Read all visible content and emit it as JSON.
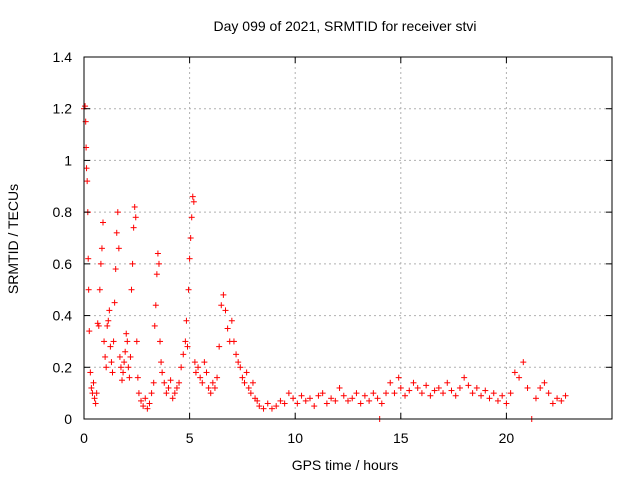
{
  "chart_data": {
    "type": "scatter",
    "title": "Day 099 of 2021, SRMTID for receiver stvi",
    "xlabel": "GPS time / hours",
    "ylabel": "SRMTID / TECUs",
    "xlim": [
      0,
      25
    ],
    "ylim": [
      0,
      1.4
    ],
    "xticks": [
      0,
      5,
      10,
      15,
      20
    ],
    "xtick_labels": [
      "0",
      "5",
      "10",
      "15",
      "20"
    ],
    "yticks": [
      0,
      0.2,
      0.4,
      0.6,
      0.8,
      1.0,
      1.2,
      1.4
    ],
    "ytick_labels": [
      "0",
      "0.2",
      "0.4",
      "0.6",
      "0.8",
      "1",
      "1.2",
      "1.4"
    ],
    "grid": true,
    "marker": "plus",
    "color": "#ff0000",
    "series": [
      {
        "name": "SRMTID",
        "points": [
          [
            0.0,
            1.2
          ],
          [
            0.05,
            1.21
          ],
          [
            0.08,
            1.15
          ],
          [
            0.1,
            1.05
          ],
          [
            0.12,
            0.97
          ],
          [
            0.15,
            0.92
          ],
          [
            0.18,
            0.8
          ],
          [
            0.2,
            0.62
          ],
          [
            0.22,
            0.5
          ],
          [
            0.25,
            0.34
          ],
          [
            0.3,
            0.18
          ],
          [
            0.35,
            0.12
          ],
          [
            0.4,
            0.1
          ],
          [
            0.45,
            0.14
          ],
          [
            0.5,
            0.08
          ],
          [
            0.55,
            0.06
          ],
          [
            0.6,
            0.1
          ],
          [
            0.65,
            0.37
          ],
          [
            0.7,
            0.36
          ],
          [
            0.75,
            0.5
          ],
          [
            0.8,
            0.6
          ],
          [
            0.85,
            0.66
          ],
          [
            0.9,
            0.76
          ],
          [
            0.95,
            0.3
          ],
          [
            1.0,
            0.24
          ],
          [
            1.05,
            0.2
          ],
          [
            1.1,
            0.36
          ],
          [
            1.15,
            0.38
          ],
          [
            1.2,
            0.42
          ],
          [
            1.25,
            0.28
          ],
          [
            1.3,
            0.22
          ],
          [
            1.35,
            0.18
          ],
          [
            1.4,
            0.3
          ],
          [
            1.45,
            0.45
          ],
          [
            1.5,
            0.58
          ],
          [
            1.55,
            0.72
          ],
          [
            1.6,
            0.8
          ],
          [
            1.65,
            0.66
          ],
          [
            1.7,
            0.24
          ],
          [
            1.75,
            0.2
          ],
          [
            1.8,
            0.15
          ],
          [
            1.85,
            0.18
          ],
          [
            1.9,
            0.22
          ],
          [
            1.95,
            0.26
          ],
          [
            2.0,
            0.33
          ],
          [
            2.05,
            0.3
          ],
          [
            2.1,
            0.2
          ],
          [
            2.15,
            0.16
          ],
          [
            2.2,
            0.24
          ],
          [
            2.25,
            0.5
          ],
          [
            2.3,
            0.6
          ],
          [
            2.35,
            0.74
          ],
          [
            2.4,
            0.82
          ],
          [
            2.45,
            0.78
          ],
          [
            2.5,
            0.3
          ],
          [
            2.55,
            0.16
          ],
          [
            2.6,
            0.1
          ],
          [
            2.7,
            0.07
          ],
          [
            2.8,
            0.05
          ],
          [
            2.9,
            0.08
          ],
          [
            3.0,
            0.04
          ],
          [
            3.1,
            0.06
          ],
          [
            3.2,
            0.1
          ],
          [
            3.3,
            0.14
          ],
          [
            3.35,
            0.36
          ],
          [
            3.4,
            0.44
          ],
          [
            3.45,
            0.56
          ],
          [
            3.5,
            0.64
          ],
          [
            3.55,
            0.6
          ],
          [
            3.6,
            0.3
          ],
          [
            3.65,
            0.22
          ],
          [
            3.7,
            0.18
          ],
          [
            3.8,
            0.14
          ],
          [
            3.9,
            0.1
          ],
          [
            4.0,
            0.12
          ],
          [
            4.1,
            0.15
          ],
          [
            4.2,
            0.08
          ],
          [
            4.3,
            0.1
          ],
          [
            4.4,
            0.12
          ],
          [
            4.5,
            0.14
          ],
          [
            4.6,
            0.2
          ],
          [
            4.7,
            0.25
          ],
          [
            4.8,
            0.3
          ],
          [
            4.85,
            0.38
          ],
          [
            4.9,
            0.28
          ],
          [
            4.95,
            0.5
          ],
          [
            5.0,
            0.62
          ],
          [
            5.05,
            0.7
          ],
          [
            5.1,
            0.78
          ],
          [
            5.15,
            0.86
          ],
          [
            5.2,
            0.84
          ],
          [
            5.25,
            0.22
          ],
          [
            5.3,
            0.18
          ],
          [
            5.4,
            0.2
          ],
          [
            5.5,
            0.16
          ],
          [
            5.6,
            0.14
          ],
          [
            5.7,
            0.22
          ],
          [
            5.8,
            0.18
          ],
          [
            5.9,
            0.12
          ],
          [
            6.0,
            0.1
          ],
          [
            6.1,
            0.14
          ],
          [
            6.2,
            0.12
          ],
          [
            6.3,
            0.16
          ],
          [
            6.4,
            0.28
          ],
          [
            6.5,
            0.44
          ],
          [
            6.6,
            0.48
          ],
          [
            6.7,
            0.42
          ],
          [
            6.8,
            0.35
          ],
          [
            6.9,
            0.3
          ],
          [
            7.0,
            0.38
          ],
          [
            7.1,
            0.3
          ],
          [
            7.2,
            0.25
          ],
          [
            7.3,
            0.22
          ],
          [
            7.4,
            0.2
          ],
          [
            7.5,
            0.16
          ],
          [
            7.6,
            0.14
          ],
          [
            7.7,
            0.18
          ],
          [
            7.8,
            0.12
          ],
          [
            7.9,
            0.1
          ],
          [
            8.0,
            0.14
          ],
          [
            8.1,
            0.08
          ],
          [
            8.2,
            0.07
          ],
          [
            8.3,
            0.05
          ],
          [
            8.5,
            0.04
          ],
          [
            8.7,
            0.06
          ],
          [
            8.9,
            0.04
          ],
          [
            9.1,
            0.05
          ],
          [
            9.3,
            0.07
          ],
          [
            9.5,
            0.06
          ],
          [
            9.7,
            0.1
          ],
          [
            9.9,
            0.08
          ],
          [
            10.1,
            0.06
          ],
          [
            10.3,
            0.09
          ],
          [
            10.5,
            0.07
          ],
          [
            10.7,
            0.08
          ],
          [
            10.9,
            0.05
          ],
          [
            11.1,
            0.09
          ],
          [
            11.3,
            0.1
          ],
          [
            11.5,
            0.06
          ],
          [
            11.7,
            0.08
          ],
          [
            11.9,
            0.07
          ],
          [
            12.1,
            0.12
          ],
          [
            12.3,
            0.09
          ],
          [
            12.5,
            0.07
          ],
          [
            12.7,
            0.08
          ],
          [
            12.9,
            0.1
          ],
          [
            13.1,
            0.06
          ],
          [
            13.3,
            0.09
          ],
          [
            13.5,
            0.07
          ],
          [
            13.7,
            0.1
          ],
          [
            13.9,
            0.08
          ],
          [
            14.0,
            0.0
          ],
          [
            14.1,
            0.06
          ],
          [
            14.3,
            0.1
          ],
          [
            14.5,
            0.14
          ],
          [
            14.7,
            0.1
          ],
          [
            14.9,
            0.16
          ],
          [
            15.0,
            0.12
          ],
          [
            15.2,
            0.09
          ],
          [
            15.4,
            0.11
          ],
          [
            15.6,
            0.14
          ],
          [
            15.8,
            0.12
          ],
          [
            16.0,
            0.1
          ],
          [
            16.2,
            0.13
          ],
          [
            16.4,
            0.09
          ],
          [
            16.6,
            0.11
          ],
          [
            16.8,
            0.12
          ],
          [
            17.0,
            0.1
          ],
          [
            17.2,
            0.14
          ],
          [
            17.4,
            0.11
          ],
          [
            17.6,
            0.09
          ],
          [
            17.8,
            0.12
          ],
          [
            18.0,
            0.16
          ],
          [
            18.2,
            0.13
          ],
          [
            18.4,
            0.1
          ],
          [
            18.6,
            0.12
          ],
          [
            18.8,
            0.09
          ],
          [
            19.0,
            0.11
          ],
          [
            19.2,
            0.08
          ],
          [
            19.4,
            0.1
          ],
          [
            19.6,
            0.07
          ],
          [
            19.8,
            0.09
          ],
          [
            20.0,
            0.06
          ],
          [
            20.2,
            0.1
          ],
          [
            20.4,
            0.18
          ],
          [
            20.6,
            0.16
          ],
          [
            20.8,
            0.22
          ],
          [
            21.0,
            0.12
          ],
          [
            21.2,
            0.0
          ],
          [
            21.4,
            0.08
          ],
          [
            21.6,
            0.12
          ],
          [
            21.8,
            0.14
          ],
          [
            22.0,
            0.1
          ],
          [
            22.2,
            0.06
          ],
          [
            22.4,
            0.08
          ],
          [
            22.6,
            0.07
          ],
          [
            22.8,
            0.09
          ]
        ]
      }
    ]
  }
}
